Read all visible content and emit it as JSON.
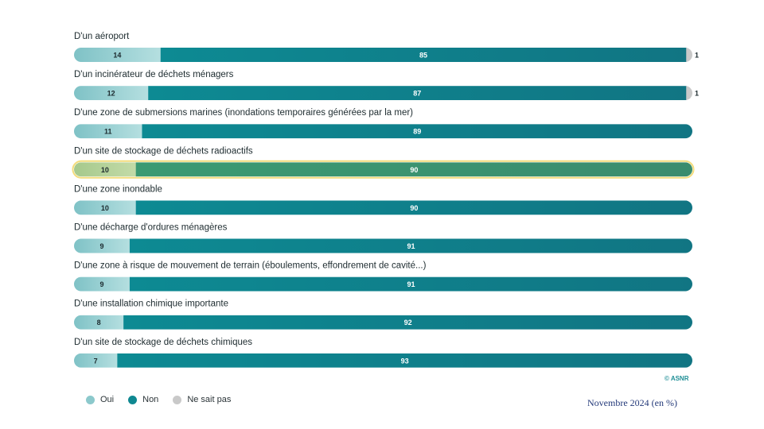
{
  "chart_data": {
    "type": "bar",
    "orientation": "horizontal",
    "stacked": true,
    "categories": [
      "D'un aéroport",
      "D'un incinérateur de déchets ménagers",
      "D'une zone de submersions marines (inondations temporaires générées par la mer)",
      "D'un site de stockage de déchets radioactifs",
      "D'une zone inondable",
      "D'une décharge d'ordures ménagères",
      "D'une zone à risque de mouvement de terrain (éboulements, effondrement de cavité...)",
      "D'une installation chimique importante",
      "D'un site de stockage de déchets chimiques"
    ],
    "series": [
      {
        "name": "Oui",
        "color": "#8cc9cc",
        "values": [
          14,
          12,
          11,
          10,
          10,
          9,
          9,
          8,
          7
        ]
      },
      {
        "name": "Non",
        "color": "#0f8891",
        "values": [
          85,
          87,
          89,
          90,
          90,
          91,
          91,
          92,
          93
        ]
      },
      {
        "name": "Ne sait pas",
        "color": "#c9c9c9",
        "values": [
          1,
          1,
          null,
          null,
          null,
          null,
          null,
          null,
          null
        ]
      }
    ],
    "highlighted_category_index": 3,
    "highlight_colors": {
      "oui": "#b3cf9a",
      "non": "#3f9a76",
      "border": "#f3dc7c"
    },
    "xlim": [
      0,
      100
    ],
    "legend_position": "bottom-left"
  },
  "footer": {
    "copyright": "© ASNR",
    "date_note": "Novembre 2024 (en %)"
  }
}
